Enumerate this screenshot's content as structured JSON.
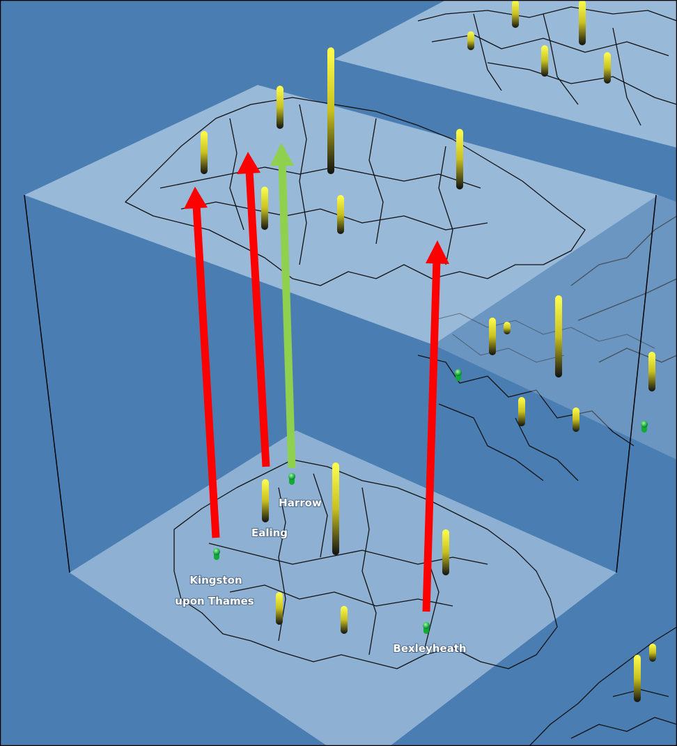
{
  "places": {
    "harrow": "Harrow",
    "ealing": "Ealing",
    "kingston": [
      "Kingston",
      "upon Thames"
    ],
    "bexleyheath": "Bexleyheath"
  }
}
